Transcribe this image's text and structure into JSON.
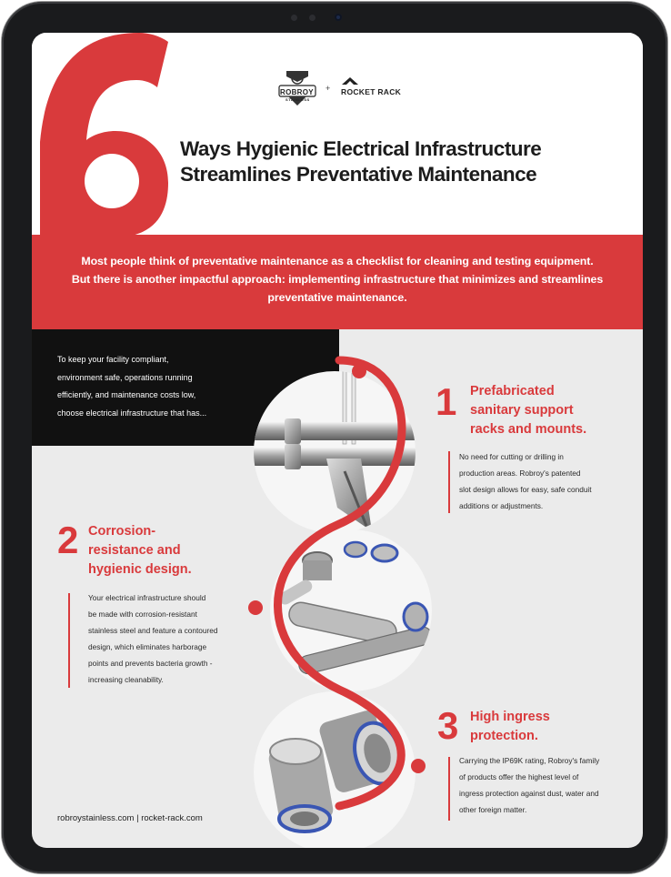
{
  "header": {
    "big_number": "6",
    "brand_left": "ROBROY",
    "brand_left_sub": "STAINLESS",
    "brand_joiner": "+",
    "brand_right": "ROCKET RACK",
    "title_line1": "Ways Hygienic Electrical Infrastructure",
    "title_line2": "Streamlines Preventative Maintenance"
  },
  "banner": {
    "line1": "Most people think of preventative maintenance as a checklist for cleaning and testing equipment.",
    "line2": "But there is another impactful approach: implementing infrastructure that minimizes and streamlines",
    "line3": "preventative maintenance."
  },
  "intro": {
    "line1": "To keep your facility compliant,",
    "line2": "environment safe, operations running",
    "line3": "efficiently, and maintenance costs low,",
    "line4": "choose electrical infrastructure that has..."
  },
  "features": [
    {
      "number": "1",
      "title_lines": [
        "Prefabricated",
        "sanitary support",
        "racks and mounts."
      ],
      "desc_lines": [
        "No need for cutting or drilling in",
        "production areas. Robroy's patented",
        "slot design allows for easy, safe conduit",
        "additions or adjustments."
      ]
    },
    {
      "number": "2",
      "title_lines": [
        "Corrosion-",
        "resistance and",
        "hygienic design."
      ],
      "desc_lines": [
        "Your electrical infrastructure should",
        "be made with corrosion-resistant",
        "stainless steel and feature a contoured",
        "design, which eliminates harborage",
        "points and prevents bacteria growth -",
        "increasing cleanability."
      ]
    },
    {
      "number": "3",
      "title_lines": [
        "High ingress",
        "protection."
      ],
      "desc_lines": [
        "Carrying the IP69K rating, Robroy's family",
        "of products offer the highest level of",
        "ingress protection against dust, water and",
        "other foreign matter."
      ]
    }
  ],
  "footer": {
    "text": "robroystainless.com | rocket-rack.com"
  },
  "colors": {
    "accent_red": "#d93a3c",
    "dark": "#111111",
    "background": "#ebebeb"
  },
  "icons": {
    "robroy_logo": "shield-crest-icon",
    "rocket_logo": "rocket-chevron-icon"
  }
}
